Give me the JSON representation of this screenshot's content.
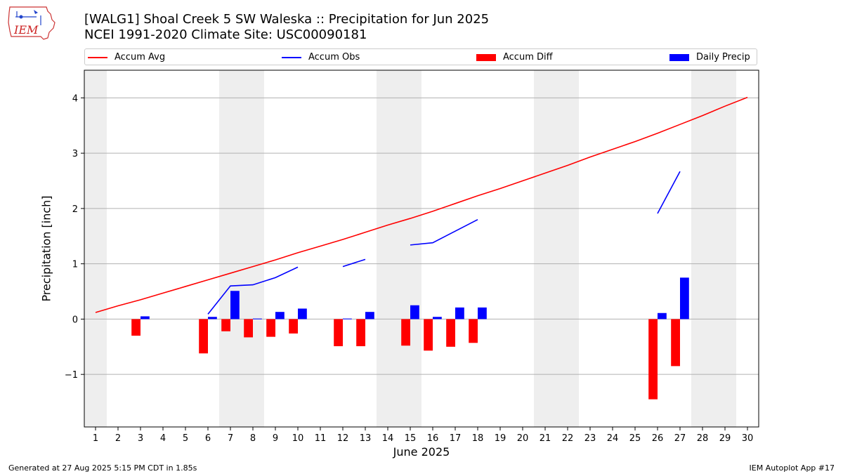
{
  "header": {
    "title_line1": "[WALG1] Shoal Creek 5 SW Waleska :: Precipitation for Jun 2025",
    "title_line2": "NCEI 1991-2020 Climate Site: USC00090181",
    "logo_text": "IEM"
  },
  "legend": {
    "accum_avg": "Accum Avg",
    "accum_obs": "Accum Obs",
    "accum_diff": "Accum Diff",
    "daily_precip": "Daily Precip"
  },
  "footer": {
    "left": "Generated at 27 Aug 2025 5:15 PM CDT in 1.85s",
    "right": "IEM Autoplot App #17"
  },
  "colors": {
    "accum_avg": "#ff0000",
    "accum_obs": "#0000ff",
    "accum_diff": "#ff0000",
    "daily_precip": "#0000ff",
    "weekend_shade": "#eeeeee",
    "grid": "#b0b0b0"
  },
  "chart_data": {
    "type": "bar",
    "xlabel": "June 2025",
    "ylabel": "Precipitation [inch]",
    "xlim": [
      0.5,
      30.5
    ],
    "ylim": [
      -1.95,
      4.5
    ],
    "yticks": [
      -1,
      0,
      1,
      2,
      3,
      4
    ],
    "ytick_labels": [
      "−1",
      "0",
      "1",
      "2",
      "3",
      "4"
    ],
    "xticks": [
      1,
      2,
      3,
      4,
      5,
      6,
      7,
      8,
      9,
      10,
      11,
      12,
      13,
      14,
      15,
      16,
      17,
      18,
      19,
      20,
      21,
      22,
      23,
      24,
      25,
      26,
      27,
      28,
      29,
      30
    ],
    "grid": "horizontal",
    "legend_position": "top",
    "weekend_days": [
      1,
      7,
      8,
      14,
      15,
      21,
      22,
      28,
      29
    ],
    "series": [
      {
        "name": "Accum Avg",
        "kind": "line",
        "x": [
          1,
          2,
          3,
          4,
          5,
          6,
          7,
          8,
          9,
          10,
          11,
          12,
          13,
          14,
          15,
          16,
          17,
          18,
          19,
          20,
          21,
          22,
          23,
          24,
          25,
          26,
          27,
          28,
          29,
          30
        ],
        "values": [
          0.12,
          0.24,
          0.35,
          0.47,
          0.59,
          0.71,
          0.83,
          0.95,
          1.07,
          1.2,
          1.32,
          1.44,
          1.57,
          1.7,
          1.82,
          1.95,
          2.09,
          2.23,
          2.36,
          2.5,
          2.64,
          2.78,
          2.93,
          3.07,
          3.21,
          3.36,
          3.52,
          3.68,
          3.85,
          4.01
        ]
      },
      {
        "name": "Accum Obs",
        "kind": "line",
        "segments": [
          {
            "x": [
              6,
              7,
              8,
              9,
              10
            ],
            "values": [
              0.09,
              0.6,
              0.62,
              0.75,
              0.94
            ]
          },
          {
            "x": [
              12,
              13
            ],
            "values": [
              0.95,
              1.08
            ]
          },
          {
            "x": [
              15,
              16,
              17,
              18
            ],
            "values": [
              1.34,
              1.38,
              1.59,
              1.8
            ]
          },
          {
            "x": [
              26,
              27
            ],
            "values": [
              1.91,
              2.67
            ]
          }
        ]
      },
      {
        "name": "Accum Diff",
        "kind": "bar",
        "x": [
          3,
          6,
          7,
          8,
          9,
          10,
          12,
          13,
          15,
          16,
          17,
          18,
          26,
          27
        ],
        "values": [
          -0.3,
          -0.62,
          -0.22,
          -0.33,
          -0.32,
          -0.26,
          -0.49,
          -0.49,
          -0.48,
          -0.57,
          -0.5,
          -0.43,
          -1.45,
          -0.85
        ]
      },
      {
        "name": "Daily Precip",
        "kind": "bar",
        "x": [
          3,
          6,
          7,
          8,
          9,
          10,
          12,
          13,
          15,
          16,
          17,
          18,
          26,
          27
        ],
        "values": [
          0.05,
          0.04,
          0.51,
          0.01,
          0.13,
          0.19,
          0.01,
          0.13,
          0.25,
          0.04,
          0.21,
          0.21,
          0.11,
          0.75
        ]
      }
    ]
  }
}
